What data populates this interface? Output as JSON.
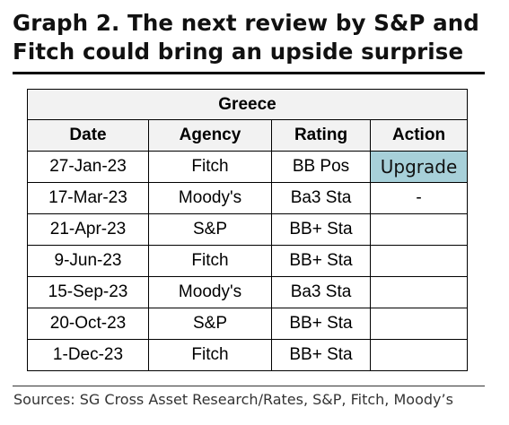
{
  "title": {
    "line1": "Graph 2. The next review by S&P and",
    "line2": "Fitch could bring an upside surprise"
  },
  "table": {
    "group_header": "Greece",
    "columns": [
      "Date",
      "Agency",
      "Rating",
      "Action"
    ],
    "rows": [
      {
        "date": "27-Jan-23",
        "agency": "Fitch",
        "rating": "BB Pos",
        "action": "Upgrade"
      },
      {
        "date": "17-Mar-23",
        "agency": "Moody's",
        "rating": "Ba3 Sta",
        "action": "-"
      },
      {
        "date": "21-Apr-23",
        "agency": "S&P",
        "rating": "BB+ Sta",
        "action": ""
      },
      {
        "date": "9-Jun-23",
        "agency": "Fitch",
        "rating": "BB+ Sta",
        "action": ""
      },
      {
        "date": "15-Sep-23",
        "agency": "Moody's",
        "rating": "Ba3 Sta",
        "action": ""
      },
      {
        "date": "20-Oct-23",
        "agency": "S&P",
        "rating": "BB+ Sta",
        "action": ""
      },
      {
        "date": "1-Dec-23",
        "agency": "Fitch",
        "rating": "BB+ Sta",
        "action": ""
      }
    ],
    "colors": {
      "header_bg": "#f2f2f2",
      "upgrade_bg": "#a7d0d9"
    }
  },
  "source": "Sources: SG Cross Asset Research/Rates, S&P, Fitch, Moody’s"
}
